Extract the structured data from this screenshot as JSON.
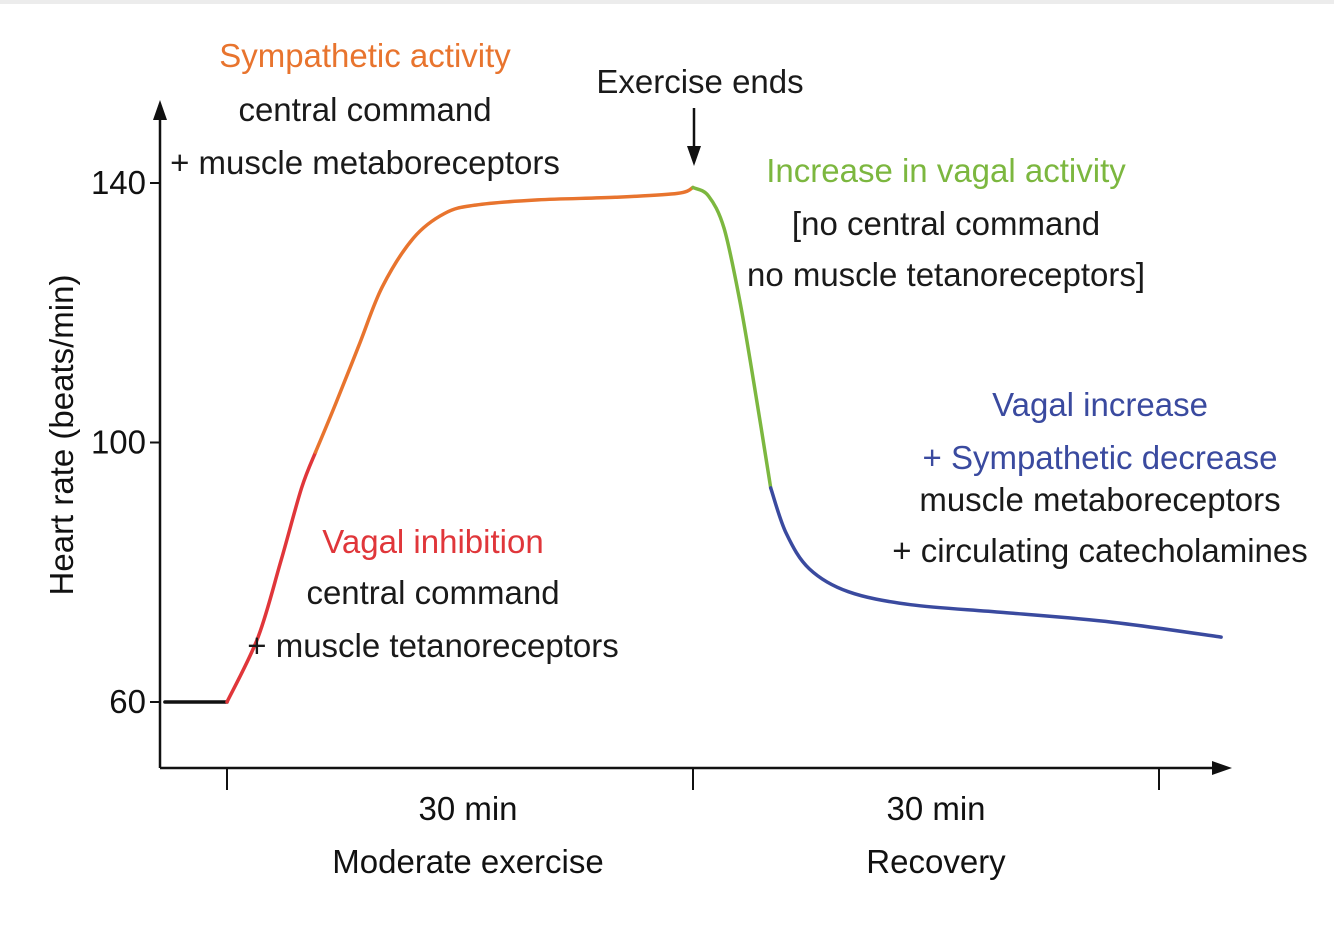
{
  "chart_data": {
    "type": "line",
    "title": "",
    "ylabel": "Heart rate (beats/min)",
    "xlabel": "",
    "ylim": [
      50,
      150
    ],
    "xlim": [
      0,
      66
    ],
    "y_ticks": [
      "60",
      "100",
      "140"
    ],
    "y_tick_values": [
      60,
      100,
      140
    ],
    "x_tick_values": [
      0,
      30,
      60
    ],
    "x_segment_labels": [
      {
        "duration": "30 min",
        "phase": "Moderate exercise"
      },
      {
        "duration": "30 min",
        "phase": "Recovery"
      }
    ],
    "colors": {
      "baseline": "#111111",
      "vagal_inhibition": "#e0363a",
      "sympathetic": "#e8742e",
      "vagal_increase_fast": "#7cb73f",
      "vagal_sympathetic_slow": "#3a4a9f",
      "axis": "#111111"
    },
    "series": [
      {
        "name": "baseline",
        "color_key": "baseline",
        "points": [
          [
            -4,
            60
          ],
          [
            0,
            60
          ]
        ]
      },
      {
        "name": "Vagal inhibition",
        "color_key": "vagal_inhibition",
        "points": [
          [
            0,
            60
          ],
          [
            2,
            70
          ],
          [
            3.5,
            82
          ],
          [
            4.8,
            93
          ],
          [
            5.7,
            98.5
          ]
        ]
      },
      {
        "name": "Sympathetic activity",
        "color_key": "sympathetic",
        "points": [
          [
            5.7,
            98.5
          ],
          [
            7,
            106
          ],
          [
            8.5,
            115
          ],
          [
            10,
            124
          ],
          [
            12,
            131.5
          ],
          [
            14,
            135.3
          ],
          [
            16,
            136.6
          ],
          [
            20,
            137.4
          ],
          [
            25,
            137.8
          ],
          [
            29,
            138.4
          ],
          [
            30,
            139.3
          ]
        ]
      },
      {
        "name": "Increase in vagal activity",
        "color_key": "vagal_increase_fast",
        "points": [
          [
            30,
            139.3
          ],
          [
            31,
            138
          ],
          [
            32,
            133
          ],
          [
            33,
            122
          ],
          [
            34,
            108
          ],
          [
            35,
            93
          ]
        ]
      },
      {
        "name": "Vagal increase + Sympathetic decrease",
        "color_key": "vagal_sympathetic_slow",
        "points": [
          [
            35,
            93
          ],
          [
            36,
            86
          ],
          [
            37.5,
            80.5
          ],
          [
            40,
            77
          ],
          [
            44,
            75
          ],
          [
            50,
            73.8
          ],
          [
            57,
            72.3
          ],
          [
            64,
            70
          ]
        ]
      }
    ],
    "annotations": [
      {
        "id": "sympathetic",
        "lines": [
          {
            "text": "Sympathetic activity",
            "color": "#e8742e"
          },
          {
            "text": "central command",
            "color": "#1a1a1a"
          },
          {
            "text": "+ muscle metaboreceptors",
            "color": "#1a1a1a"
          }
        ]
      },
      {
        "id": "exercise_ends",
        "lines": [
          {
            "text": "Exercise ends",
            "color": "#1a1a1a"
          }
        ]
      },
      {
        "id": "vagal_increase_activity",
        "lines": [
          {
            "text": "Increase in vagal activity",
            "color": "#7cb73f"
          },
          {
            "text": "[no central command",
            "color": "#1a1a1a"
          },
          {
            "text": "no muscle tetanoreceptors]",
            "color": "#1a1a1a"
          }
        ]
      },
      {
        "id": "vagal_inhibition",
        "lines": [
          {
            "text": "Vagal inhibition",
            "color": "#e0363a"
          },
          {
            "text": "central command",
            "color": "#1a1a1a"
          },
          {
            "text": "+ muscle tetanoreceptors",
            "color": "#1a1a1a"
          }
        ]
      },
      {
        "id": "vagal_sympathetic",
        "lines": [
          {
            "text": "Vagal increase",
            "color": "#3a4a9f"
          },
          {
            "text": "+ Sympathetic decrease",
            "color": "#3a4a9f"
          },
          {
            "text": "muscle metaboreceptors",
            "color": "#1a1a1a"
          },
          {
            "text": "+ circulating catecholamines",
            "color": "#1a1a1a"
          }
        ]
      }
    ]
  }
}
